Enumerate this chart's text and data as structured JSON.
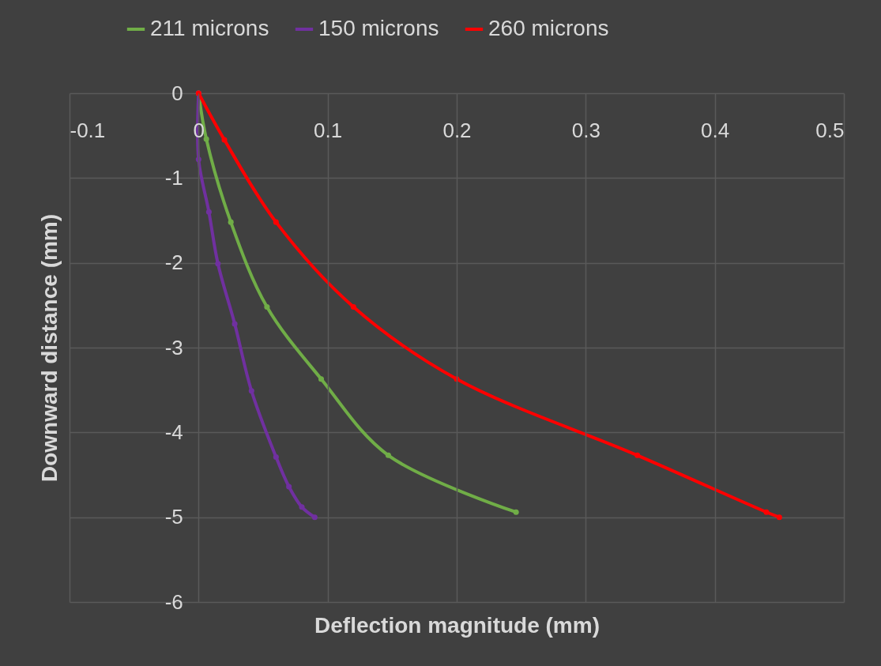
{
  "chart_data": {
    "type": "line",
    "xlabel": "Deflection magnitude (mm)",
    "ylabel": "Downward distance (mm)",
    "xlim": [
      -0.1,
      0.5
    ],
    "xticks": [
      -0.1,
      0,
      0.1,
      0.2,
      0.3,
      0.4,
      0.5
    ],
    "ylim": [
      -6,
      0
    ],
    "yticks": [
      -6,
      -5,
      -4,
      -3,
      -2,
      -1,
      0
    ],
    "grid": true,
    "legend": "top",
    "marker": "circle",
    "series": [
      {
        "name": "211 microns",
        "color": "#70ad47",
        "x": [
          0,
          0.006,
          0.025,
          0.053,
          0.095,
          0.147,
          0.246
        ],
        "values": [
          0,
          -0.54,
          -1.52,
          -2.52,
          -3.37,
          -4.27,
          -4.94
        ]
      },
      {
        "name": "150 microns",
        "color": "#7030a0",
        "x": [
          0,
          0,
          0.008,
          0.015,
          0.028,
          0.041,
          0.06,
          0.07,
          0.08,
          0.09
        ],
        "values": [
          0,
          -0.78,
          -1.4,
          -2.01,
          -2.72,
          -3.51,
          -4.29,
          -4.64,
          -4.88,
          -5
        ]
      },
      {
        "name": "260 microns",
        "color": "#ff0000",
        "x": [
          0,
          0.02,
          0.06,
          0.12,
          0.2,
          0.34,
          0.44,
          0.45
        ],
        "values": [
          0,
          -0.55,
          -1.52,
          -2.52,
          -3.37,
          -4.27,
          -4.94,
          -5
        ]
      }
    ]
  }
}
